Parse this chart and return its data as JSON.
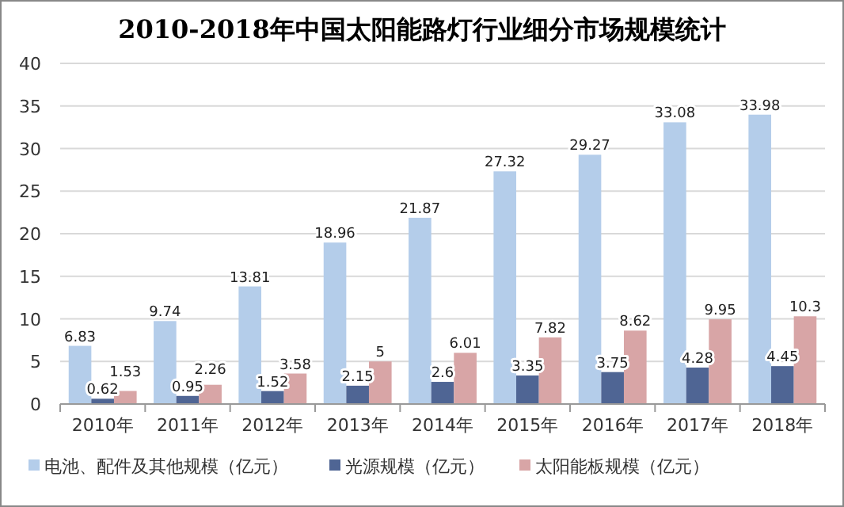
{
  "chart_data": {
    "type": "bar",
    "title": "2010-2018年中国太阳能路灯行业细分市场规模统计",
    "categories": [
      "2010年",
      "2011年",
      "2012年",
      "2013年",
      "2014年",
      "2015年",
      "2016年",
      "2017年",
      "2018年"
    ],
    "series": [
      {
        "name": "电池、配件及其他规模（亿元）",
        "color": "#b4cdea",
        "values": [
          6.83,
          9.74,
          13.81,
          18.96,
          21.87,
          27.32,
          29.27,
          33.08,
          33.98
        ]
      },
      {
        "name": "光源规模（亿元）",
        "color": "#4f6594",
        "values": [
          0.62,
          0.95,
          1.52,
          2.15,
          2.6,
          3.35,
          3.75,
          4.28,
          4.45
        ]
      },
      {
        "name": "太阳能板规模（亿元）",
        "color": "#d8a5a6",
        "values": [
          1.53,
          2.26,
          3.58,
          5,
          6.01,
          7.82,
          8.62,
          9.95,
          10.3
        ]
      }
    ],
    "ylim": [
      0,
      40
    ],
    "yticks": [
      0,
      5,
      10,
      15,
      20,
      25,
      30,
      35,
      40
    ],
    "grid": "y",
    "data_labels": true,
    "legend": "bottom"
  }
}
